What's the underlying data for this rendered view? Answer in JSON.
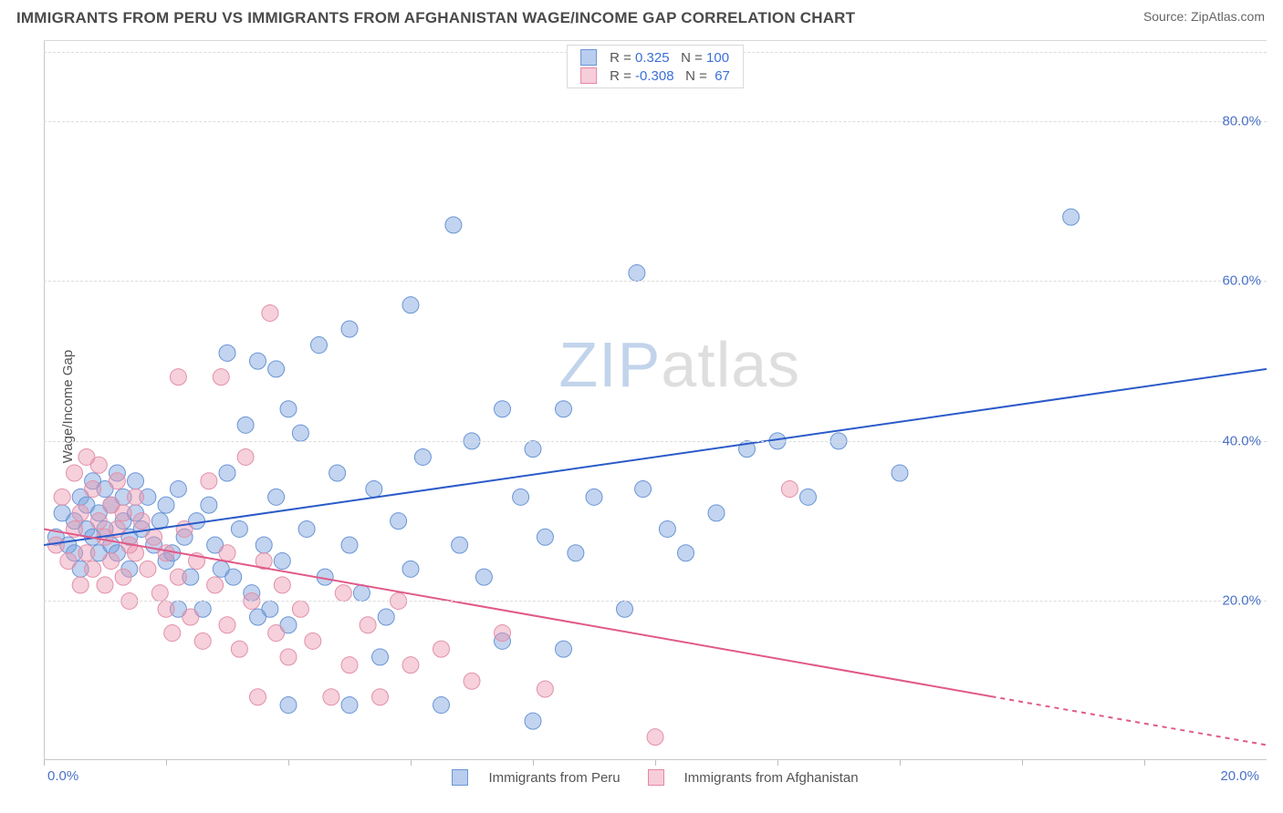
{
  "title": "IMMIGRANTS FROM PERU VS IMMIGRANTS FROM AFGHANISTAN WAGE/INCOME GAP CORRELATION CHART",
  "source": "Source: ZipAtlas.com",
  "ylabel": "Wage/Income Gap",
  "watermark": {
    "zip": "ZIP",
    "atlas": "atlas"
  },
  "chart": {
    "type": "scatter",
    "background_color": "#ffffff",
    "grid_color": "#dcdcdc",
    "axis_color": "#c8c8c8",
    "tick_color": "#4a72c8",
    "xlim": [
      0,
      20
    ],
    "ylim": [
      0,
      90
    ],
    "xticks": [
      0,
      2,
      4,
      6,
      8,
      10,
      12,
      14,
      16,
      18
    ],
    "xtick_labels": {
      "left": "0.0%",
      "right": "20.0%"
    },
    "yticks": [
      20,
      40,
      60,
      80
    ],
    "ytick_labels": [
      "20.0%",
      "40.0%",
      "60.0%",
      "80.0%"
    ],
    "marker_radius": 9,
    "marker_opacity": 0.55,
    "line_width": 2
  },
  "series": [
    {
      "name": "Immigrants from Peru",
      "color_fill": "rgba(120,160,220,0.45)",
      "color_stroke": "#6a95d6",
      "swatch_fill": "#b9cdef",
      "swatch_border": "#6a95d6",
      "R": "0.325",
      "N": "100",
      "regression": {
        "x1": 0,
        "y1": 27,
        "x2": 20,
        "y2": 49,
        "color": "#2b5bc9",
        "dash_after": null
      },
      "points": [
        [
          0.2,
          28
        ],
        [
          0.3,
          31
        ],
        [
          0.4,
          27
        ],
        [
          0.5,
          30
        ],
        [
          0.5,
          26
        ],
        [
          0.6,
          33
        ],
        [
          0.6,
          24
        ],
        [
          0.7,
          29
        ],
        [
          0.7,
          32
        ],
        [
          0.8,
          28
        ],
        [
          0.8,
          35
        ],
        [
          0.9,
          31
        ],
        [
          0.9,
          26
        ],
        [
          1.0,
          29
        ],
        [
          1.0,
          34
        ],
        [
          1.1,
          32
        ],
        [
          1.1,
          27
        ],
        [
          1.2,
          36
        ],
        [
          1.2,
          26
        ],
        [
          1.3,
          30
        ],
        [
          1.3,
          33
        ],
        [
          1.4,
          28
        ],
        [
          1.4,
          24
        ],
        [
          1.5,
          31
        ],
        [
          1.5,
          35
        ],
        [
          1.6,
          29
        ],
        [
          1.7,
          33
        ],
        [
          1.8,
          27
        ],
        [
          1.9,
          30
        ],
        [
          2.0,
          32
        ],
        [
          2.0,
          25
        ],
        [
          2.1,
          26
        ],
        [
          2.2,
          34
        ],
        [
          2.3,
          28
        ],
        [
          2.4,
          23
        ],
        [
          2.5,
          30
        ],
        [
          2.6,
          19
        ],
        [
          2.7,
          32
        ],
        [
          2.8,
          27
        ],
        [
          2.9,
          24
        ],
        [
          3.0,
          36
        ],
        [
          3.0,
          51
        ],
        [
          3.1,
          23
        ],
        [
          3.2,
          29
        ],
        [
          3.3,
          42
        ],
        [
          3.4,
          21
        ],
        [
          3.5,
          50
        ],
        [
          3.6,
          27
        ],
        [
          3.7,
          19
        ],
        [
          3.8,
          33
        ],
        [
          3.9,
          25
        ],
        [
          4.0,
          44
        ],
        [
          4.0,
          17
        ],
        [
          4.2,
          41
        ],
        [
          4.3,
          29
        ],
        [
          4.5,
          52
        ],
        [
          4.6,
          23
        ],
        [
          4.8,
          36
        ],
        [
          5.0,
          54
        ],
        [
          5.0,
          27
        ],
        [
          5.2,
          21
        ],
        [
          5.4,
          34
        ],
        [
          5.6,
          18
        ],
        [
          5.8,
          30
        ],
        [
          6.0,
          57
        ],
        [
          6.0,
          24
        ],
        [
          6.2,
          38
        ],
        [
          6.5,
          7
        ],
        [
          6.7,
          67
        ],
        [
          6.8,
          27
        ],
        [
          7.0,
          40
        ],
        [
          7.2,
          23
        ],
        [
          7.5,
          44
        ],
        [
          7.5,
          15
        ],
        [
          7.8,
          33
        ],
        [
          8.0,
          39
        ],
        [
          8.2,
          28
        ],
        [
          8.5,
          14
        ],
        [
          8.7,
          26
        ],
        [
          9.0,
          33
        ],
        [
          8.5,
          44
        ],
        [
          8.0,
          5
        ],
        [
          9.5,
          19
        ],
        [
          9.7,
          61
        ],
        [
          9.8,
          34
        ],
        [
          10.2,
          29
        ],
        [
          10.5,
          26
        ],
        [
          11.0,
          31
        ],
        [
          11.5,
          39
        ],
        [
          12.0,
          40
        ],
        [
          12.5,
          33
        ],
        [
          13.0,
          40
        ],
        [
          14.0,
          36
        ],
        [
          16.8,
          68
        ],
        [
          4.0,
          7
        ],
        [
          5.0,
          7
        ],
        [
          5.5,
          13
        ],
        [
          3.8,
          49
        ],
        [
          3.5,
          18
        ],
        [
          2.2,
          19
        ]
      ]
    },
    {
      "name": "Immigrants from Afghanistan",
      "color_fill": "rgba(235,150,175,0.45)",
      "color_stroke": "#e290ab",
      "swatch_fill": "#f6cdd9",
      "swatch_border": "#e787a5",
      "R": "-0.308",
      "N": "67",
      "regression": {
        "x1": 0,
        "y1": 29,
        "x2": 20,
        "y2": 2,
        "color": "#e15a88",
        "dash_after": 15.5
      },
      "points": [
        [
          0.2,
          27
        ],
        [
          0.3,
          33
        ],
        [
          0.4,
          25
        ],
        [
          0.5,
          36
        ],
        [
          0.5,
          29
        ],
        [
          0.6,
          31
        ],
        [
          0.6,
          22
        ],
        [
          0.7,
          38
        ],
        [
          0.7,
          26
        ],
        [
          0.8,
          34
        ],
        [
          0.8,
          24
        ],
        [
          0.9,
          30
        ],
        [
          0.9,
          37
        ],
        [
          1.0,
          28
        ],
        [
          1.0,
          22
        ],
        [
          1.1,
          32
        ],
        [
          1.1,
          25
        ],
        [
          1.2,
          29
        ],
        [
          1.2,
          35
        ],
        [
          1.3,
          23
        ],
        [
          1.3,
          31
        ],
        [
          1.4,
          27
        ],
        [
          1.4,
          20
        ],
        [
          1.5,
          33
        ],
        [
          1.5,
          26
        ],
        [
          1.6,
          30
        ],
        [
          1.7,
          24
        ],
        [
          1.8,
          28
        ],
        [
          1.9,
          21
        ],
        [
          2.0,
          19
        ],
        [
          2.0,
          26
        ],
        [
          2.1,
          16
        ],
        [
          2.2,
          23
        ],
        [
          2.3,
          29
        ],
        [
          2.4,
          18
        ],
        [
          2.5,
          25
        ],
        [
          2.6,
          15
        ],
        [
          2.7,
          35
        ],
        [
          2.8,
          22
        ],
        [
          2.9,
          48
        ],
        [
          3.0,
          17
        ],
        [
          3.0,
          26
        ],
        [
          3.2,
          14
        ],
        [
          3.3,
          38
        ],
        [
          3.4,
          20
        ],
        [
          3.5,
          8
        ],
        [
          3.6,
          25
        ],
        [
          3.7,
          56
        ],
        [
          3.8,
          16
        ],
        [
          3.9,
          22
        ],
        [
          4.0,
          13
        ],
        [
          4.2,
          19
        ],
        [
          4.4,
          15
        ],
        [
          4.7,
          8
        ],
        [
          4.9,
          21
        ],
        [
          5.0,
          12
        ],
        [
          5.3,
          17
        ],
        [
          5.5,
          8
        ],
        [
          5.8,
          20
        ],
        [
          6.0,
          12
        ],
        [
          6.5,
          14
        ],
        [
          7.0,
          10
        ],
        [
          7.5,
          16
        ],
        [
          8.2,
          9
        ],
        [
          10.0,
          3
        ],
        [
          12.2,
          34
        ],
        [
          2.2,
          48
        ]
      ]
    }
  ],
  "legend_bottom": [
    {
      "label": "Immigrants from Peru",
      "swatch_fill": "#b9cdef",
      "swatch_border": "#6a95d6"
    },
    {
      "label": "Immigrants from Afghanistan",
      "swatch_fill": "#f6cdd9",
      "swatch_border": "#e787a5"
    }
  ]
}
